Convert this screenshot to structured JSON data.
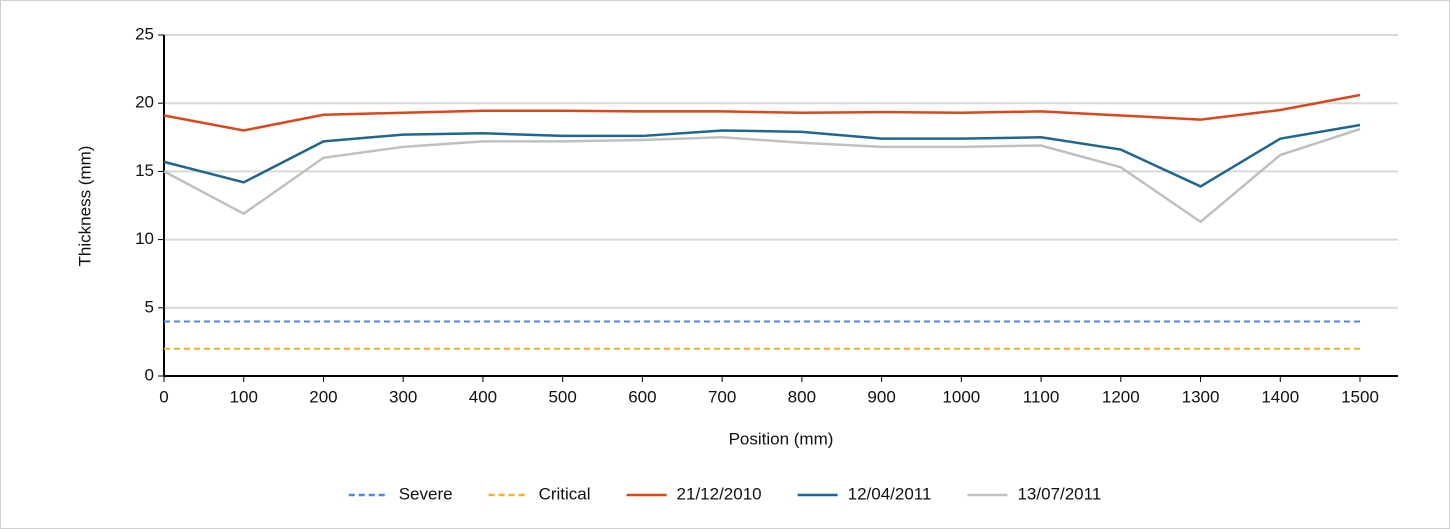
{
  "chart_data": {
    "type": "line",
    "x_label": "Position (mm)",
    "y_label": "Thickness (mm)",
    "x": [
      0,
      100,
      200,
      300,
      400,
      500,
      600,
      700,
      800,
      900,
      1000,
      1100,
      1200,
      1300,
      1400,
      1500
    ],
    "xlim": [
      0,
      1500
    ],
    "xticks": [
      0,
      100,
      200,
      300,
      400,
      500,
      600,
      700,
      800,
      900,
      1000,
      1100,
      1200,
      1300,
      1400,
      1500
    ],
    "ylim": [
      0,
      25
    ],
    "yticks": [
      0,
      5,
      10,
      15,
      20,
      25
    ],
    "grid": true,
    "legend": "bottom",
    "series": [
      {
        "name": "Severe",
        "color": "#4a8ae0",
        "style": "dashed",
        "values": [
          4,
          4,
          4,
          4,
          4,
          4,
          4,
          4,
          4,
          4,
          4,
          4,
          4,
          4,
          4,
          4
        ]
      },
      {
        "name": "Critical",
        "color": "#f2b134",
        "style": "dashed",
        "values": [
          2,
          2,
          2,
          2,
          2,
          2,
          2,
          2,
          2,
          2,
          2,
          2,
          2,
          2,
          2,
          2
        ]
      },
      {
        "name": "21/12/2010",
        "color": "#d9481c",
        "style": "solid",
        "values": [
          19.1,
          18.0,
          19.15,
          19.3,
          19.45,
          19.45,
          19.4,
          19.4,
          19.3,
          19.35,
          19.3,
          19.4,
          19.1,
          18.8,
          19.5,
          20.6
        ]
      },
      {
        "name": "12/04/2011",
        "color": "#1f6690",
        "style": "solid",
        "values": [
          15.7,
          14.2,
          17.2,
          17.7,
          17.8,
          17.6,
          17.6,
          18.0,
          17.9,
          17.4,
          17.4,
          17.5,
          16.6,
          13.9,
          17.4,
          18.4
        ]
      },
      {
        "name": "13/07/2011",
        "color": "#c0c0c0",
        "style": "solid",
        "values": [
          15.0,
          11.9,
          16.0,
          16.8,
          17.2,
          17.2,
          17.3,
          17.5,
          17.1,
          16.8,
          16.8,
          16.9,
          15.3,
          11.3,
          16.2,
          18.1
        ]
      }
    ]
  }
}
